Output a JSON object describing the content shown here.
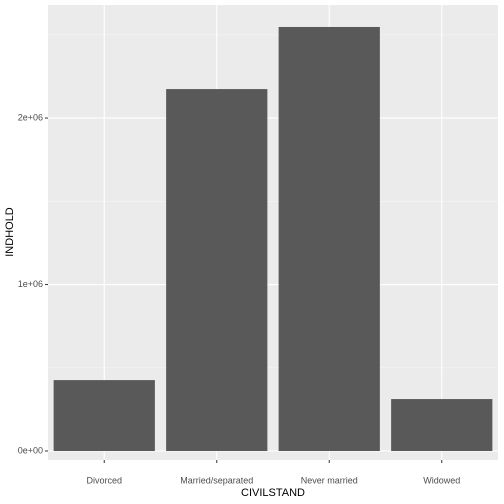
{
  "chart_data": {
    "type": "bar",
    "x_label": "CIVILSTAND",
    "y_label": "INDHOLD",
    "categories": [
      "Divorced",
      "Married/separated",
      "Never married",
      "Widowed"
    ],
    "values": [
      426000,
      2174000,
      2547000,
      312000
    ],
    "color": "#595959",
    "ylim": [
      -54000,
      2679000
    ],
    "yticks": [
      {
        "value": 0,
        "label": "0e+00"
      },
      {
        "value": 1000000,
        "label": "1e+06"
      },
      {
        "value": 2000000,
        "label": "2e+06"
      }
    ],
    "minor_yticks": [
      500000,
      1500000,
      2500000
    ],
    "grid": true
  }
}
